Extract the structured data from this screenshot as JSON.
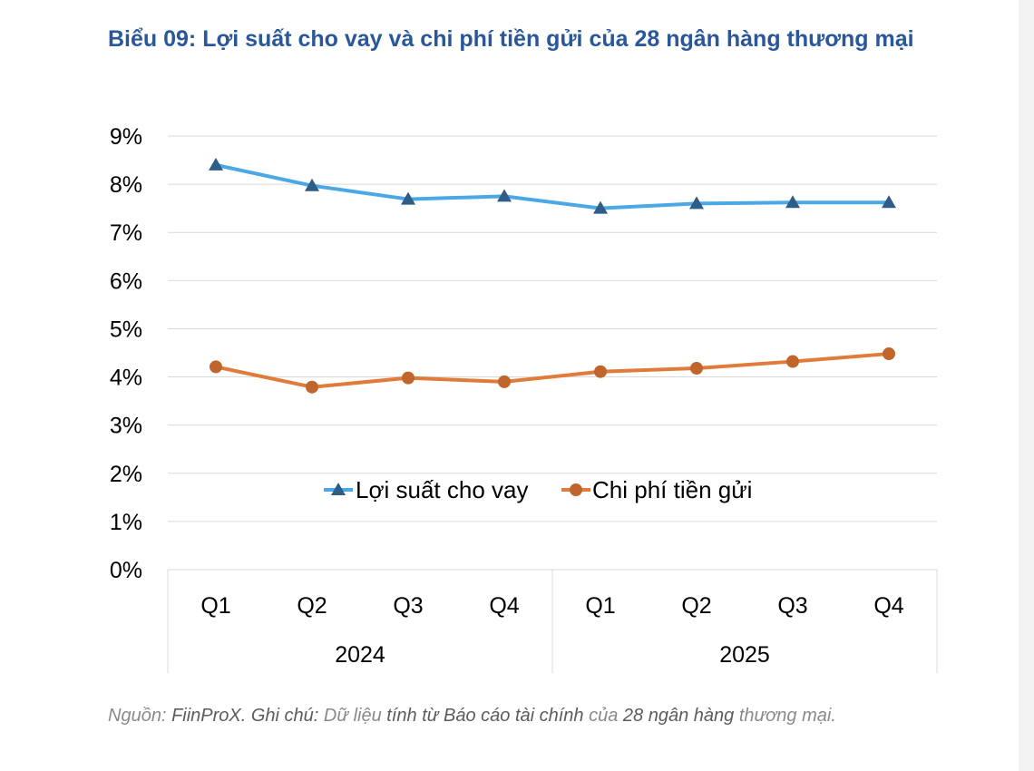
{
  "title": "Biểu 09: Lợi suất cho vay và chi phí tiền gửi của 28 ngân hàng thương mại",
  "source": {
    "p1": "Nguồn: ",
    "p2": "FiinProX. Ghi chú: ",
    "p3": "Dữ liệu ",
    "p4": "tính từ ",
    "p5": "Báo cáo tài chính ",
    "p6": "của ",
    "p7": "28 ngân hàng ",
    "p8": "thương mại."
  },
  "colors": {
    "title": "#2a579a",
    "lending_yield": "#4aa8e6",
    "lending_marker": "#2f5d88",
    "deposit_cost": "#e07b3a",
    "deposit_marker": "#c0652c",
    "grid": "#d9d9d9"
  },
  "chart_data": {
    "type": "line",
    "title": "Biểu 09: Lợi suất cho vay và chi phí tiền gửi của 28 ngân hàng thương mại",
    "categories": [
      "Q1",
      "Q2",
      "Q3",
      "Q4",
      "Q1",
      "Q2",
      "Q3",
      "Q4"
    ],
    "category_groups": [
      {
        "label": "2024",
        "count": 4
      },
      {
        "label": "2025",
        "count": 4
      }
    ],
    "ylim": [
      0,
      9
    ],
    "yticks": [
      "0%",
      "1%",
      "2%",
      "3%",
      "4%",
      "5%",
      "6%",
      "7%",
      "8%",
      "9%"
    ],
    "grid": true,
    "legend_position": "center",
    "series": [
      {
        "name": "Lợi suất cho vay",
        "marker": "triangle",
        "values": [
          8.4,
          7.97,
          7.69,
          7.75,
          7.5,
          7.6,
          7.62,
          7.62
        ]
      },
      {
        "name": "Chi phí tiền gửi",
        "marker": "circle",
        "values": [
          4.21,
          3.79,
          3.98,
          3.9,
          4.11,
          4.18,
          4.32,
          4.48
        ]
      }
    ]
  }
}
